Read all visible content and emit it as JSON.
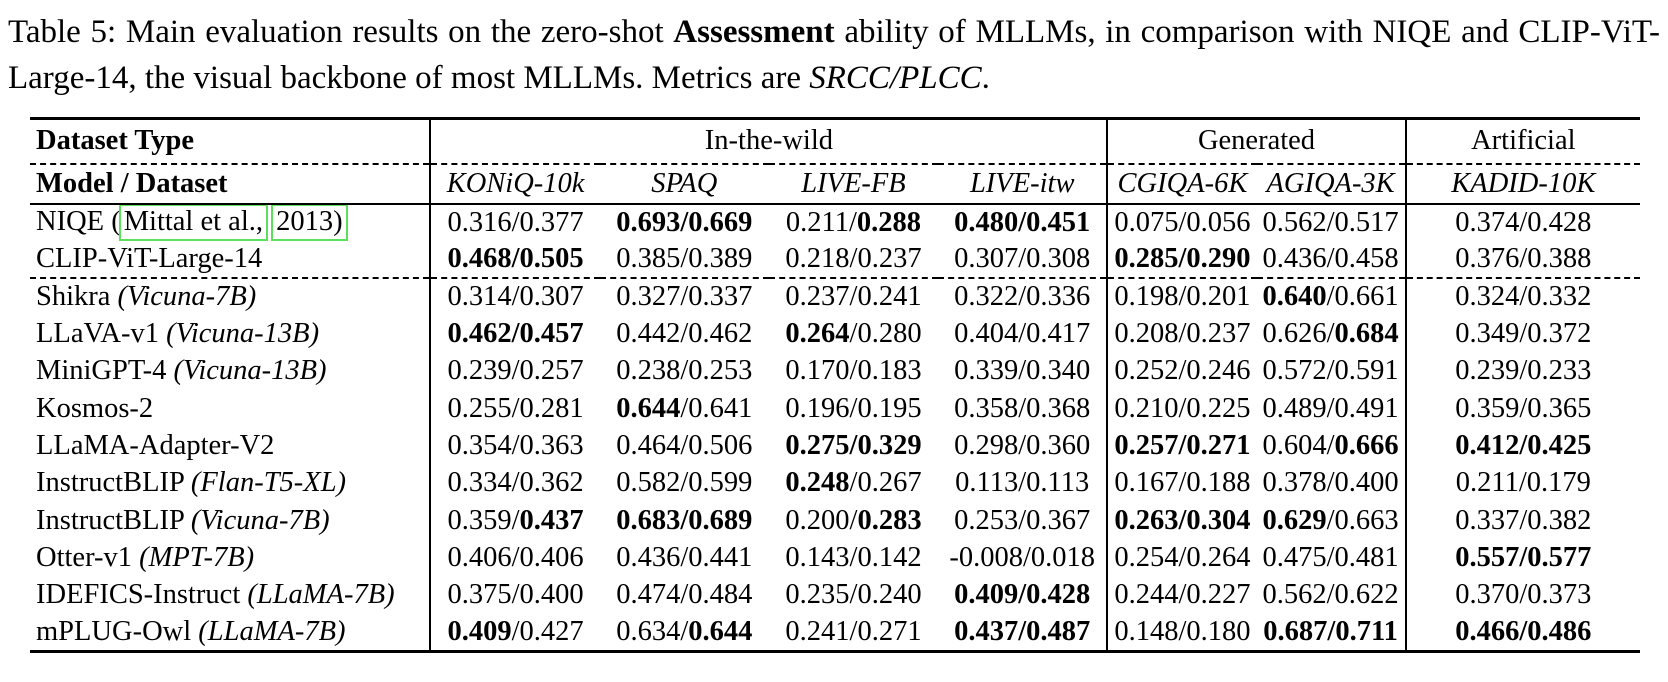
{
  "caption": {
    "label": "Table 5:",
    "text1": "Main evaluation results on the zero-shot",
    "bold1": "Assessment",
    "text2": "ability of MLLMs, in comparison with NIQE and CLIP-ViT-Large-14, the visual backbone of most MLLMs. Metrics are",
    "italic1": "SRCC/PLCC",
    "period": "."
  },
  "table": {
    "sep": "/",
    "link_box_color": "#5ce05c",
    "header": {
      "corner_row1": "Dataset Type",
      "corner_row2": "Model / Dataset",
      "groups": [
        {
          "label": "In-the-wild",
          "span": 4
        },
        {
          "label": "Generated",
          "span": 2
        },
        {
          "label": "Artificial",
          "span": 1
        }
      ],
      "datasets": [
        "KONiQ-10k",
        "SPAQ",
        "LIVE-FB",
        "LIVE-itw",
        "CGIQA-6K",
        "AGIQA-3K",
        "KADID-10K"
      ]
    },
    "rows": [
      {
        "model": "NIQE (",
        "cite": [
          "Mittal et al.,",
          "2013)"
        ],
        "dashed_below": false,
        "cells": [
          {
            "s": "0.316",
            "p": "0.377",
            "sb": false,
            "pb": false
          },
          {
            "s": "0.693",
            "p": "0.669",
            "sb": true,
            "pb": true
          },
          {
            "s": "0.211",
            "p": "0.288",
            "sb": false,
            "pb": true
          },
          {
            "s": "0.480",
            "p": "0.451",
            "sb": true,
            "pb": true
          },
          {
            "s": "0.075",
            "p": "0.056",
            "sb": false,
            "pb": false
          },
          {
            "s": "0.562",
            "p": "0.517",
            "sb": false,
            "pb": false
          },
          {
            "s": "0.374",
            "p": "0.428",
            "sb": false,
            "pb": false
          }
        ]
      },
      {
        "model": "CLIP-ViT-Large-14",
        "dashed_below": true,
        "cells": [
          {
            "s": "0.468",
            "p": "0.505",
            "sb": true,
            "pb": true
          },
          {
            "s": "0.385",
            "p": "0.389",
            "sb": false,
            "pb": false
          },
          {
            "s": "0.218",
            "p": "0.237",
            "sb": false,
            "pb": false
          },
          {
            "s": "0.307",
            "p": "0.308",
            "sb": false,
            "pb": false
          },
          {
            "s": "0.285",
            "p": "0.290",
            "sb": true,
            "pb": true
          },
          {
            "s": "0.436",
            "p": "0.458",
            "sb": false,
            "pb": false
          },
          {
            "s": "0.376",
            "p": "0.388",
            "sb": false,
            "pb": false
          }
        ]
      },
      {
        "model": "Shikra",
        "variant": "(Vicuna-7B)",
        "dashed_below": false,
        "cells": [
          {
            "s": "0.314",
            "p": "0.307",
            "sb": false,
            "pb": false
          },
          {
            "s": "0.327",
            "p": "0.337",
            "sb": false,
            "pb": false
          },
          {
            "s": "0.237",
            "p": "0.241",
            "sb": false,
            "pb": false
          },
          {
            "s": "0.322",
            "p": "0.336",
            "sb": false,
            "pb": false
          },
          {
            "s": "0.198",
            "p": "0.201",
            "sb": false,
            "pb": false
          },
          {
            "s": "0.640",
            "p": "0.661",
            "sb": true,
            "pb": false
          },
          {
            "s": "0.324",
            "p": "0.332",
            "sb": false,
            "pb": false
          }
        ]
      },
      {
        "model": "LLaVA-v1",
        "variant": "(Vicuna-13B)",
        "dashed_below": false,
        "cells": [
          {
            "s": "0.462",
            "p": "0.457",
            "sb": true,
            "pb": true
          },
          {
            "s": "0.442",
            "p": "0.462",
            "sb": false,
            "pb": false
          },
          {
            "s": "0.264",
            "p": "0.280",
            "sb": true,
            "pb": false
          },
          {
            "s": "0.404",
            "p": "0.417",
            "sb": false,
            "pb": false
          },
          {
            "s": "0.208",
            "p": "0.237",
            "sb": false,
            "pb": false
          },
          {
            "s": "0.626",
            "p": "0.684",
            "sb": false,
            "pb": true
          },
          {
            "s": "0.349",
            "p": "0.372",
            "sb": false,
            "pb": false
          }
        ]
      },
      {
        "model": "MiniGPT-4",
        "variant": "(Vicuna-13B)",
        "dashed_below": false,
        "cells": [
          {
            "s": "0.239",
            "p": "0.257",
            "sb": false,
            "pb": false
          },
          {
            "s": "0.238",
            "p": "0.253",
            "sb": false,
            "pb": false
          },
          {
            "s": "0.170",
            "p": "0.183",
            "sb": false,
            "pb": false
          },
          {
            "s": "0.339",
            "p": "0.340",
            "sb": false,
            "pb": false
          },
          {
            "s": "0.252",
            "p": "0.246",
            "sb": false,
            "pb": false
          },
          {
            "s": "0.572",
            "p": "0.591",
            "sb": false,
            "pb": false
          },
          {
            "s": "0.239",
            "p": "0.233",
            "sb": false,
            "pb": false
          }
        ]
      },
      {
        "model": "Kosmos-2",
        "dashed_below": false,
        "cells": [
          {
            "s": "0.255",
            "p": "0.281",
            "sb": false,
            "pb": false
          },
          {
            "s": "0.644",
            "p": "0.641",
            "sb": true,
            "pb": false
          },
          {
            "s": "0.196",
            "p": "0.195",
            "sb": false,
            "pb": false
          },
          {
            "s": "0.358",
            "p": "0.368",
            "sb": false,
            "pb": false
          },
          {
            "s": "0.210",
            "p": "0.225",
            "sb": false,
            "pb": false
          },
          {
            "s": "0.489",
            "p": "0.491",
            "sb": false,
            "pb": false
          },
          {
            "s": "0.359",
            "p": "0.365",
            "sb": false,
            "pb": false
          }
        ]
      },
      {
        "model": "LLaMA-Adapter-V2",
        "dashed_below": false,
        "cells": [
          {
            "s": "0.354",
            "p": "0.363",
            "sb": false,
            "pb": false
          },
          {
            "s": "0.464",
            "p": "0.506",
            "sb": false,
            "pb": false
          },
          {
            "s": "0.275",
            "p": "0.329",
            "sb": true,
            "pb": true
          },
          {
            "s": "0.298",
            "p": "0.360",
            "sb": false,
            "pb": false
          },
          {
            "s": "0.257",
            "p": "0.271",
            "sb": true,
            "pb": true
          },
          {
            "s": "0.604",
            "p": "0.666",
            "sb": false,
            "pb": true
          },
          {
            "s": "0.412",
            "p": "0.425",
            "sb": true,
            "pb": true
          }
        ]
      },
      {
        "model": "InstructBLIP",
        "variant": "(Flan-T5-XL)",
        "dashed_below": false,
        "cells": [
          {
            "s": "0.334",
            "p": "0.362",
            "sb": false,
            "pb": false
          },
          {
            "s": "0.582",
            "p": "0.599",
            "sb": false,
            "pb": false
          },
          {
            "s": "0.248",
            "p": "0.267",
            "sb": true,
            "pb": false
          },
          {
            "s": "0.113",
            "p": "0.113",
            "sb": false,
            "pb": false
          },
          {
            "s": "0.167",
            "p": "0.188",
            "sb": false,
            "pb": false
          },
          {
            "s": "0.378",
            "p": "0.400",
            "sb": false,
            "pb": false
          },
          {
            "s": "0.211",
            "p": "0.179",
            "sb": false,
            "pb": false
          }
        ]
      },
      {
        "model": "InstructBLIP",
        "variant": "(Vicuna-7B)",
        "dashed_below": false,
        "cells": [
          {
            "s": "0.359",
            "p": "0.437",
            "sb": false,
            "pb": true
          },
          {
            "s": "0.683",
            "p": "0.689",
            "sb": true,
            "pb": true
          },
          {
            "s": "0.200",
            "p": "0.283",
            "sb": false,
            "pb": true
          },
          {
            "s": "0.253",
            "p": "0.367",
            "sb": false,
            "pb": false
          },
          {
            "s": "0.263",
            "p": "0.304",
            "sb": true,
            "pb": true
          },
          {
            "s": "0.629",
            "p": "0.663",
            "sb": true,
            "pb": false
          },
          {
            "s": "0.337",
            "p": "0.382",
            "sb": false,
            "pb": false
          }
        ]
      },
      {
        "model": "Otter-v1",
        "variant": "(MPT-7B)",
        "dashed_below": false,
        "cells": [
          {
            "s": "0.406",
            "p": "0.406",
            "sb": false,
            "pb": false
          },
          {
            "s": "0.436",
            "p": "0.441",
            "sb": false,
            "pb": false
          },
          {
            "s": "0.143",
            "p": "0.142",
            "sb": false,
            "pb": false
          },
          {
            "s": "-0.008",
            "p": "0.018",
            "sb": false,
            "pb": false
          },
          {
            "s": "0.254",
            "p": "0.264",
            "sb": false,
            "pb": false
          },
          {
            "s": "0.475",
            "p": "0.481",
            "sb": false,
            "pb": false
          },
          {
            "s": "0.557",
            "p": "0.577",
            "sb": true,
            "pb": true
          }
        ]
      },
      {
        "model": "IDEFICS-Instruct",
        "variant": "(LLaMA-7B)",
        "dashed_below": false,
        "cells": [
          {
            "s": "0.375",
            "p": "0.400",
            "sb": false,
            "pb": false
          },
          {
            "s": "0.474",
            "p": "0.484",
            "sb": false,
            "pb": false
          },
          {
            "s": "0.235",
            "p": "0.240",
            "sb": false,
            "pb": false
          },
          {
            "s": "0.409",
            "p": "0.428",
            "sb": true,
            "pb": true
          },
          {
            "s": "0.244",
            "p": "0.227",
            "sb": false,
            "pb": false
          },
          {
            "s": "0.562",
            "p": "0.622",
            "sb": false,
            "pb": false
          },
          {
            "s": "0.370",
            "p": "0.373",
            "sb": false,
            "pb": false
          }
        ]
      },
      {
        "model": "mPLUG-Owl",
        "variant": "(LLaMA-7B)",
        "dashed_below": false,
        "cells": [
          {
            "s": "0.409",
            "p": "0.427",
            "sb": true,
            "pb": false
          },
          {
            "s": "0.634",
            "p": "0.644",
            "sb": false,
            "pb": true
          },
          {
            "s": "0.241",
            "p": "0.271",
            "sb": false,
            "pb": false
          },
          {
            "s": "0.437",
            "p": "0.487",
            "sb": true,
            "pb": true
          },
          {
            "s": "0.148",
            "p": "0.180",
            "sb": false,
            "pb": false
          },
          {
            "s": "0.687",
            "p": "0.711",
            "sb": true,
            "pb": true
          },
          {
            "s": "0.466",
            "p": "0.486",
            "sb": true,
            "pb": true
          }
        ]
      }
    ]
  }
}
